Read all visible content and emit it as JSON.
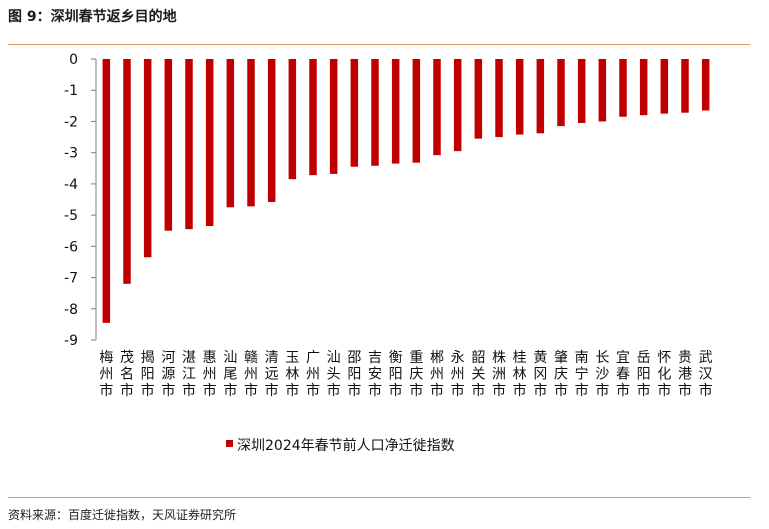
{
  "figure": {
    "title": "图 9：深圳春节返乡目的地",
    "source": "资料来源：百度迁徙指数，天风证券研究所"
  },
  "colors": {
    "bar": "#c00000",
    "axis": "#7f7f7f",
    "rule": "#d9975a"
  },
  "chart_data": {
    "type": "bar",
    "categories": [
      "梅州市",
      "茂名市",
      "揭阳市",
      "河源市",
      "湛江市",
      "惠州市",
      "汕尾市",
      "赣州市",
      "清远市",
      "玉林市",
      "广州市",
      "汕头市",
      "邵阳市",
      "吉安市",
      "衡阳市",
      "重庆市",
      "郴州市",
      "永州市",
      "韶关市",
      "株洲市",
      "桂林市",
      "黄冈市",
      "肇庆市",
      "南宁市",
      "长沙市",
      "宜春市",
      "岳阳市",
      "怀化市",
      "贵港市",
      "武汉市"
    ],
    "series": [
      {
        "name": "深圳2024年春节前人口净迁徙指数",
        "values": [
          -8.45,
          -7.2,
          -6.35,
          -5.5,
          -5.45,
          -5.35,
          -4.75,
          -4.72,
          -4.58,
          -3.85,
          -3.72,
          -3.68,
          -3.45,
          -3.42,
          -3.35,
          -3.32,
          -3.08,
          -2.95,
          -2.55,
          -2.5,
          -2.42,
          -2.38,
          -2.15,
          -2.05,
          -2.0,
          -1.85,
          -1.8,
          -1.75,
          -1.72,
          -1.65
        ]
      }
    ],
    "yticks": [
      "0",
      "-1",
      "-2",
      "-3",
      "-4",
      "-5",
      "-6",
      "-7",
      "-8",
      "-9"
    ],
    "ylim": [
      -9,
      0
    ],
    "grid": false,
    "legend": "bottom"
  }
}
